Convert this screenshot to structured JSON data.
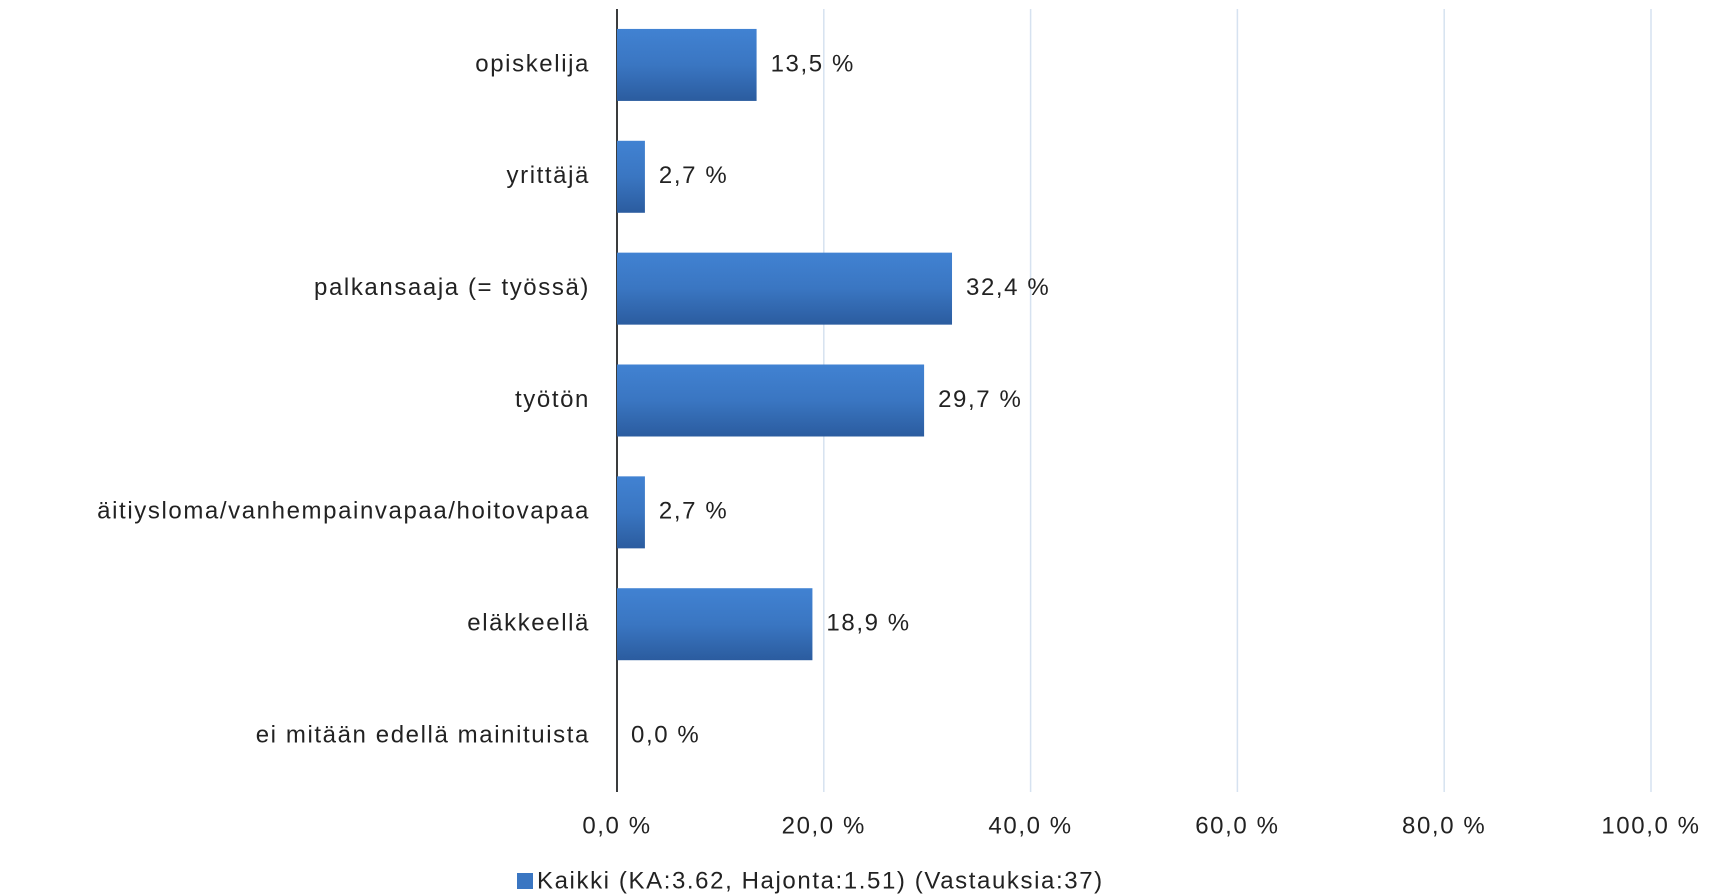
{
  "chart_data": {
    "type": "bar",
    "orientation": "horizontal",
    "categories": [
      "opiskelija",
      "yrittäjä",
      "palkansaaja (= työssä)",
      "työtön",
      "äitiysloma/vanhempainvapaa/hoitovapaa",
      "eläkkeellä",
      "ei mitään edellä mainituista"
    ],
    "series": [
      {
        "name": "Kaikki (KA:3.62, Hajonta:1.51) (Vastauksia:37)",
        "color": "#3a76c2",
        "values": [
          13.5,
          2.7,
          32.4,
          29.7,
          2.7,
          18.9,
          0.0
        ],
        "value_labels": [
          "13,5 %",
          "2,7 %",
          "32,4 %",
          "29,7 %",
          "2,7 %",
          "18,9 %",
          "0,0 %"
        ]
      }
    ],
    "xlim": [
      0,
      100
    ],
    "xticks": [
      {
        "value": 0,
        "label": "0,0 %"
      },
      {
        "value": 20,
        "label": "20,0 %"
      },
      {
        "value": 40,
        "label": "40,0 %"
      },
      {
        "value": 60,
        "label": "60,0 %"
      },
      {
        "value": 80,
        "label": "80,0 %"
      },
      {
        "value": 100,
        "label": "100,0 %"
      }
    ],
    "grid": true,
    "legend": "bottom"
  }
}
